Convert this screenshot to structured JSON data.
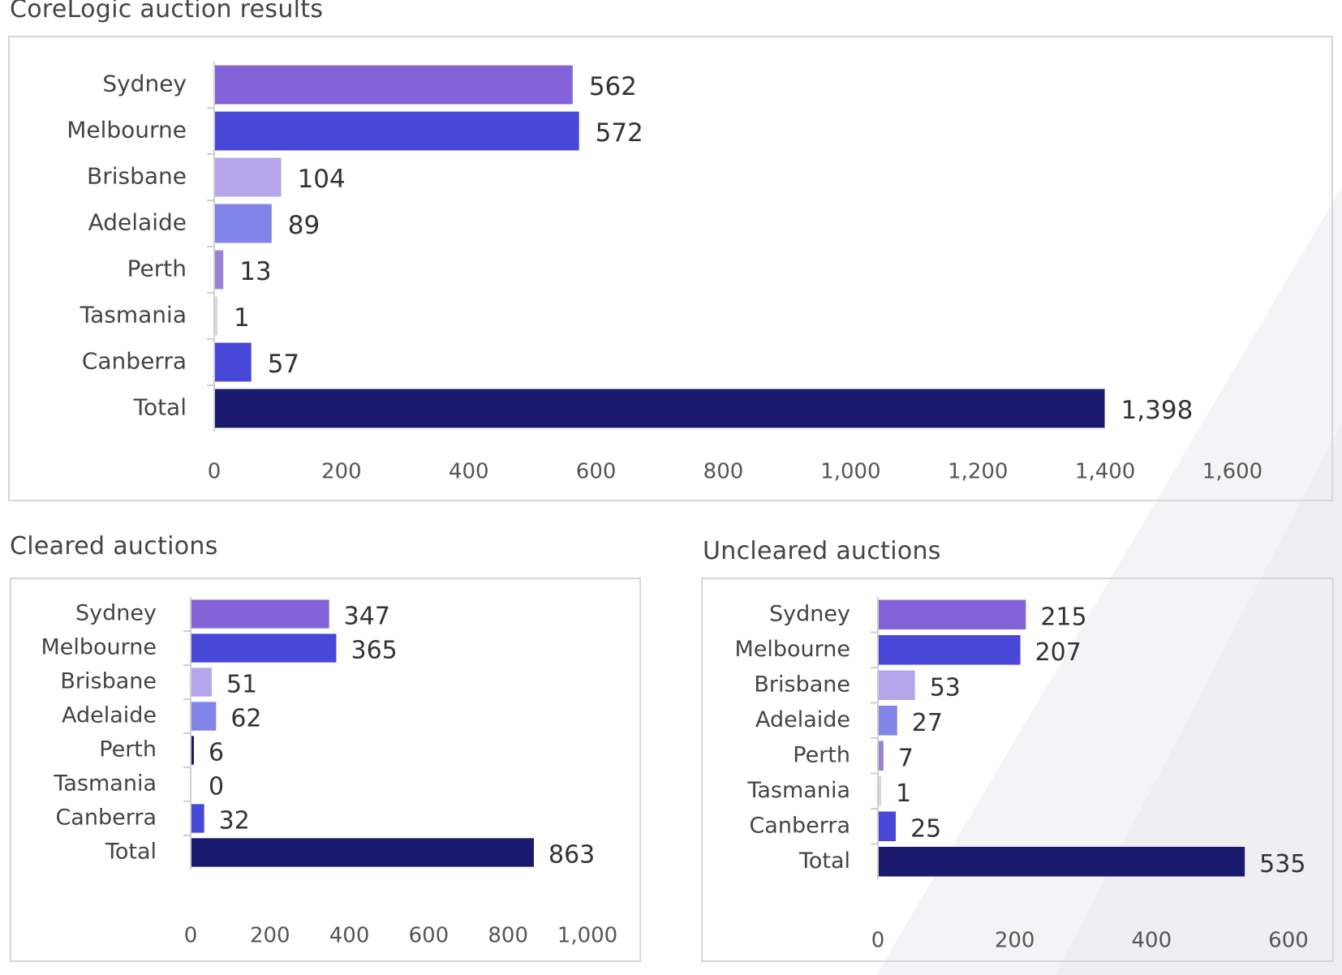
{
  "chart_data": [
    {
      "type": "bar",
      "orientation": "horizontal",
      "title": "CoreLogic auction results",
      "categories": [
        "Sydney",
        "Melbourne",
        "Brisbane",
        "Adelaide",
        "Perth",
        "Tasmania",
        "Canberra",
        "Total"
      ],
      "values": [
        562,
        572,
        104,
        89,
        13,
        1,
        57,
        1398
      ],
      "value_labels": [
        "562",
        "572",
        "104",
        "89",
        "13",
        "1",
        "57",
        "1,398"
      ],
      "colors": [
        "#8264d8",
        "#4748d8",
        "#b5a6ec",
        "#8184e8",
        "#9b82d4",
        "#d8d8d8",
        "#4748d8",
        "#1a196e"
      ],
      "xlim": [
        0,
        1600
      ],
      "xticks": [
        0,
        200,
        400,
        600,
        800,
        1000,
        1200,
        1400,
        1600
      ],
      "xtick_labels": [
        "0",
        "200",
        "400",
        "600",
        "800",
        "1,000",
        "1,200",
        "1,400",
        "1,600"
      ],
      "grid": false,
      "legend": "none"
    },
    {
      "type": "bar",
      "orientation": "horizontal",
      "title": "Cleared auctions",
      "categories": [
        "Sydney",
        "Melbourne",
        "Brisbane",
        "Adelaide",
        "Perth",
        "Tasmania",
        "Canberra",
        "Total"
      ],
      "values": [
        347,
        365,
        51,
        62,
        6,
        0,
        32,
        863
      ],
      "value_labels": [
        "347",
        "365",
        "51",
        "62",
        "6",
        "0",
        "32",
        "863"
      ],
      "colors": [
        "#8264d8",
        "#4748d8",
        "#b5a6ec",
        "#8184e8",
        "#1a196e",
        "#d8d8d8",
        "#4748d8",
        "#1a196e"
      ],
      "xlim": [
        0,
        1000
      ],
      "xticks": [
        0,
        200,
        400,
        600,
        800,
        1000
      ],
      "xtick_labels": [
        "0",
        "200",
        "400",
        "600",
        "800",
        "1,000"
      ],
      "grid": false,
      "legend": "none"
    },
    {
      "type": "bar",
      "orientation": "horizontal",
      "title": "Uncleared auctions",
      "categories": [
        "Sydney",
        "Melbourne",
        "Brisbane",
        "Adelaide",
        "Perth",
        "Tasmania",
        "Canberra",
        "Total"
      ],
      "values": [
        215,
        207,
        53,
        27,
        7,
        1,
        25,
        535
      ],
      "value_labels": [
        "215",
        "207",
        "53",
        "27",
        "7",
        "1",
        "25",
        "535"
      ],
      "colors": [
        "#8264d8",
        "#4748d8",
        "#b5a6ec",
        "#8184e8",
        "#9b82d4",
        "#d8d8d8",
        "#4748d8",
        "#1a196e"
      ],
      "xlim": [
        0,
        600
      ],
      "xticks": [
        0,
        200,
        400,
        600
      ],
      "xtick_labels": [
        "0",
        "200",
        "400",
        "600"
      ],
      "grid": false,
      "legend": "none"
    }
  ]
}
